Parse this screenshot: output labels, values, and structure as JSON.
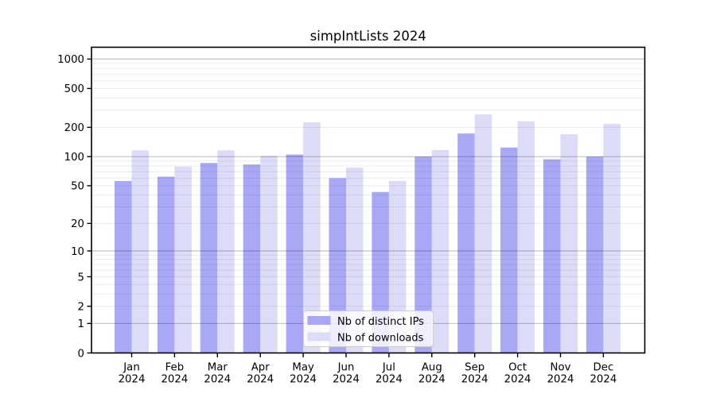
{
  "chart_data": {
    "type": "bar",
    "title": "simpIntLists 2024",
    "year": "2024",
    "categories": [
      "Jan",
      "Feb",
      "Mar",
      "Apr",
      "May",
      "Jun",
      "Jul",
      "Aug",
      "Sep",
      "Oct",
      "Nov",
      "Dec"
    ],
    "series": [
      {
        "name": "Nb of distinct IPs",
        "color": "#a8a8f6",
        "values": [
          56,
          62,
          86,
          83,
          105,
          60,
          43,
          100,
          173,
          124,
          94,
          100
        ]
      },
      {
        "name": "Nb of downloads",
        "color": "#dcdcf8",
        "values": [
          116,
          79,
          116,
          102,
          225,
          77,
          56,
          117,
          272,
          231,
          170,
          218
        ]
      }
    ],
    "yscale": "log1p",
    "ylim": [
      0,
      1320
    ],
    "yticks": [
      0,
      1,
      2,
      5,
      10,
      20,
      50,
      100,
      200,
      500,
      1000
    ],
    "ytick_labels": [
      "0",
      "1",
      "2",
      "5",
      "10",
      "20",
      "50",
      "100",
      "200",
      "500",
      "1000"
    ],
    "major_gridlines": [
      1,
      10,
      100,
      1000
    ],
    "minor_gridlines": [
      2,
      3,
      4,
      5,
      6,
      7,
      8,
      9,
      20,
      30,
      40,
      50,
      60,
      70,
      80,
      90,
      200,
      300,
      400,
      500,
      600,
      700,
      800,
      900
    ],
    "grid": true,
    "legend": {
      "location": "lower center",
      "entries": [
        "Nb of distinct IPs",
        "Nb of downloads"
      ]
    },
    "colors": {
      "background": "#ffffff",
      "spine": "#000000",
      "major_grid": "rgba(0,0,0,0.26)",
      "minor_grid": "rgba(0,0,0,0.08)",
      "legend_border": "#cccccc",
      "legend_background": "rgba(255,255,255,0.8)"
    }
  }
}
